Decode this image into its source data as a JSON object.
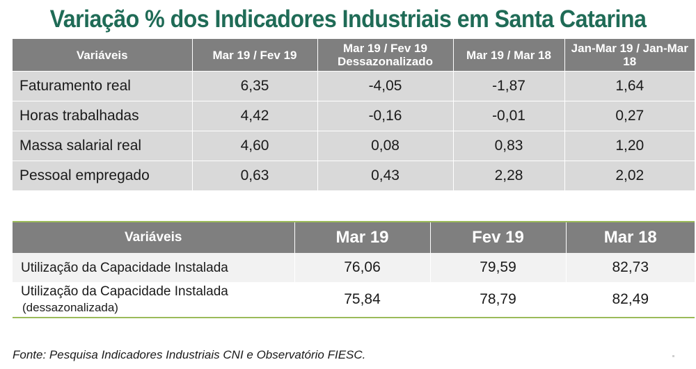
{
  "title": "Variação % dos Indicadores Industriais em Santa Catarina",
  "table1": {
    "headers": [
      "Variáveis",
      "Mar 19 / Fev 19",
      "Mar 19 / Fev 19 Dessazonalizado",
      "Mar 19 / Mar 18",
      "Jan-Mar 19 / Jan-Mar 18"
    ],
    "rows": [
      [
        "Faturamento real",
        "6,35",
        "-4,05",
        "-1,87",
        "1,64"
      ],
      [
        "Horas trabalhadas",
        "4,42",
        "-0,16",
        "-0,01",
        "0,27"
      ],
      [
        "Massa salarial real",
        "4,60",
        "0,08",
        "0,83",
        "1,20"
      ],
      [
        "Pessoal empregado",
        "0,63",
        "0,43",
        "2,28",
        "2,02"
      ]
    ]
  },
  "table2": {
    "headers": [
      "Variáveis",
      "Mar 19",
      "Fev 19",
      "Mar 18"
    ],
    "rows": [
      {
        "label": "Utilização da Capacidade Instalada",
        "sublabel": "",
        "values": [
          "76,06",
          "79,59",
          "82,73"
        ]
      },
      {
        "label": "Utilização da Capacidade Instalada",
        "sublabel": "(dessazonalizada)",
        "values": [
          "75,84",
          "78,79",
          "82,49"
        ]
      }
    ]
  },
  "source": "Fonte: Pesquisa Indicadores Industriais CNI e Observatório FIESC."
}
